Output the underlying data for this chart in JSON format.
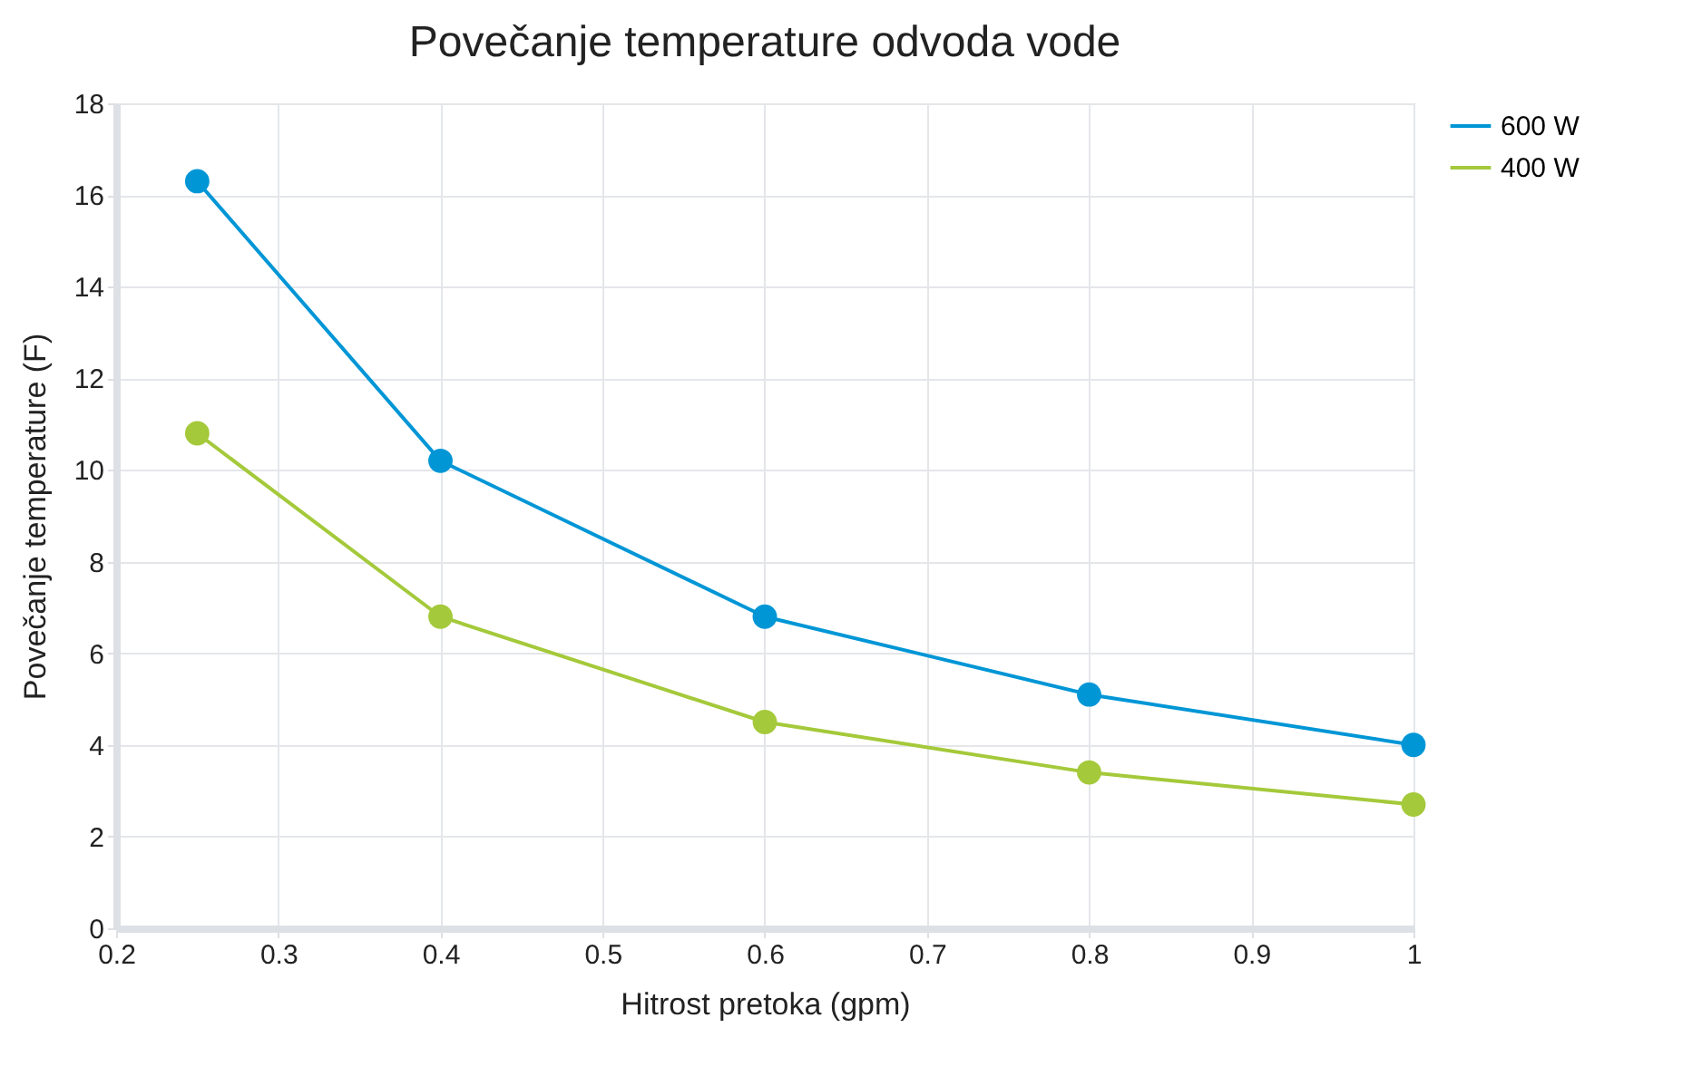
{
  "chart_data": {
    "type": "line",
    "title": "Povečanje temperature odvoda vode",
    "xlabel": "Hitrost pretoka (gpm)",
    "ylabel": "Povečanje temperature (F)",
    "x": [
      0.25,
      0.4,
      0.6,
      0.8,
      1
    ],
    "series": [
      {
        "name": "600 W",
        "color": "#0096d6",
        "values": [
          16.3,
          10.2,
          6.8,
          5.1,
          4.0
        ]
      },
      {
        "name": "400 W",
        "color": "#a4c93a",
        "values": [
          10.8,
          6.8,
          4.5,
          3.4,
          2.7
        ]
      }
    ],
    "xlim": [
      0.2,
      1
    ],
    "xticks": [
      0.2,
      0.3,
      0.4,
      0.5,
      0.6,
      0.7,
      0.8,
      0.9,
      1
    ],
    "ylim": [
      0,
      18
    ],
    "yticks": [
      0,
      2,
      4,
      6,
      8,
      10,
      12,
      14,
      16,
      18
    ],
    "grid": true,
    "legend": "right",
    "marker": "circle",
    "line_style": "solid"
  }
}
